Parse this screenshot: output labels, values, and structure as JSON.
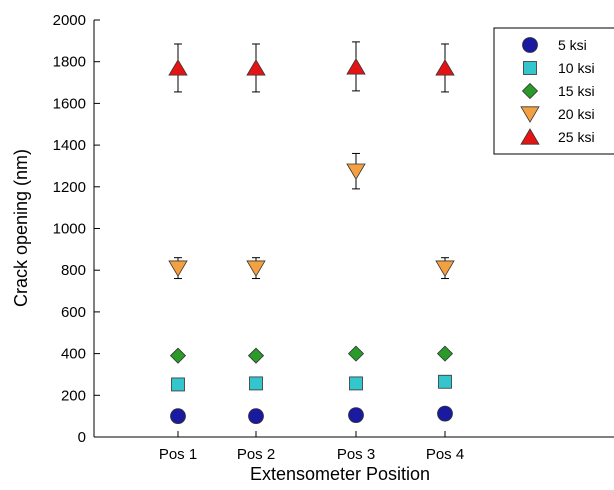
{
  "chart_data": {
    "type": "scatter",
    "xlabel": "Extensometer Position",
    "ylabel": "Crack opening (nm)",
    "categories": [
      "Pos 1",
      "Pos 2",
      "Pos 3",
      "Pos 4"
    ],
    "ylim": [
      0,
      2000
    ],
    "yticks": [
      0,
      200,
      400,
      600,
      800,
      1000,
      1200,
      1400,
      1600,
      1800,
      2000
    ],
    "grid": false,
    "legend_position": "top-right",
    "series": [
      {
        "name": "5 ksi",
        "marker": "circle",
        "color": "#1a1aa0",
        "values": [
          100,
          100,
          105,
          112
        ],
        "err": [
          null,
          null,
          null,
          null
        ]
      },
      {
        "name": "10 ksi",
        "marker": "square",
        "color": "#33c6cc",
        "values": [
          252,
          257,
          257,
          265
        ],
        "err": [
          null,
          null,
          null,
          null
        ]
      },
      {
        "name": "15 ksi",
        "marker": "diamond",
        "color": "#2a9a2a",
        "values": [
          390,
          390,
          400,
          400
        ],
        "err": [
          null,
          null,
          null,
          null
        ]
      },
      {
        "name": "20 ksi",
        "marker": "triangle-down",
        "color": "#f5a040",
        "values": [
          810,
          810,
          1275,
          810
        ],
        "err": [
          [
            760,
            860
          ],
          [
            760,
            860
          ],
          [
            1190,
            1360
          ],
          [
            760,
            860
          ]
        ]
      },
      {
        "name": "25 ksi",
        "marker": "triangle-up",
        "color": "#e41414",
        "values": [
          1770,
          1770,
          1775,
          1770
        ],
        "err": [
          [
            1655,
            1885
          ],
          [
            1655,
            1885
          ],
          [
            1660,
            1895
          ],
          [
            1655,
            1885
          ]
        ]
      }
    ]
  }
}
